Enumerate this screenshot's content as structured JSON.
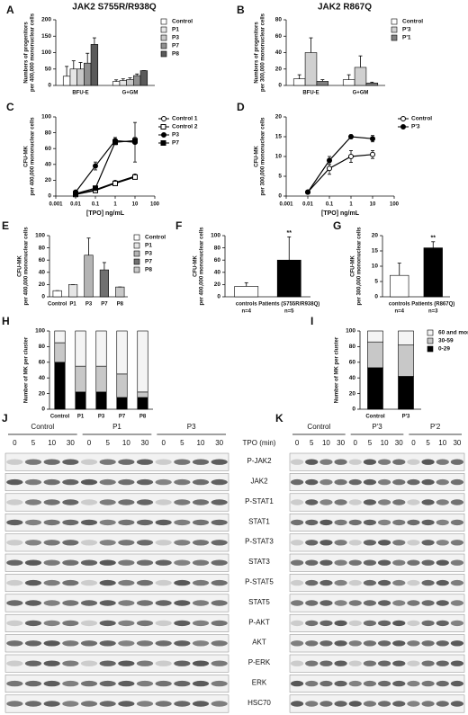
{
  "chart_data": [
    {
      "type": "bar",
      "panel": "A",
      "title": "JAK2 S755R/R938Q",
      "ylabel": [
        "Numbers of progenitors",
        "per 400,000 mononuclear cells"
      ],
      "categories": [
        "BFU-E",
        "G+GM"
      ],
      "series": [
        {
          "name": "Control",
          "color": "#ffffff",
          "values": [
            28,
            12
          ],
          "errors": [
            30,
            5
          ]
        },
        {
          "name": "P1",
          "color": "#e6e6e6",
          "values": [
            50,
            15
          ],
          "errors": [
            25,
            5
          ]
        },
        {
          "name": "P3",
          "color": "#c8c8c8",
          "values": [
            50,
            18
          ],
          "errors": [
            20,
            5
          ]
        },
        {
          "name": "P7",
          "color": "#909090",
          "values": [
            68,
            30
          ],
          "errors": [
            30,
            5
          ]
        },
        {
          "name": "P8",
          "color": "#5a5a5a",
          "values": [
            125,
            45
          ],
          "errors": [
            20,
            0
          ]
        }
      ],
      "ylim": [
        0,
        200
      ],
      "yticks": [
        0,
        50,
        100,
        150,
        200
      ],
      "legend": "right"
    },
    {
      "type": "bar",
      "panel": "B",
      "title": "JAK2 R867Q",
      "ylabel": [
        "Numbers of progenitors",
        "per 300,000 mononuclear cells"
      ],
      "categories": [
        "BFU-E",
        "G+GM"
      ],
      "series": [
        {
          "name": "Control",
          "color": "#ffffff",
          "values": [
            8,
            7
          ],
          "errors": [
            5,
            6
          ]
        },
        {
          "name": "P'3",
          "color": "#d0d0d0",
          "values": [
            40,
            22
          ],
          "errors": [
            18,
            14
          ]
        },
        {
          "name": "P'1",
          "color": "#808080",
          "values": [
            5,
            3
          ],
          "errors": [
            2,
            1
          ]
        }
      ],
      "ylim": [
        0,
        80
      ],
      "yticks": [
        0,
        20,
        40,
        60,
        80
      ],
      "legend": "right"
    },
    {
      "type": "line",
      "panel": "C",
      "ylabel": [
        "CFU-MK",
        "per 400,000 mononuclear cells"
      ],
      "xlabel": "[TPO] ng/mL",
      "log_x": true,
      "x": [
        0.01,
        0.1,
        1,
        10
      ],
      "series": [
        {
          "name": "Control 1",
          "color": "#000000",
          "marker": "circle",
          "marker_fill": "#ffffff",
          "values": [
            2,
            8,
            17,
            25
          ],
          "errors": [
            0,
            0,
            1,
            2
          ]
        },
        {
          "name": "Control 2",
          "color": "#000000",
          "marker": "square",
          "marker_fill": "#ffffff",
          "values": [
            2,
            7,
            16,
            24
          ],
          "errors": [
            0,
            1,
            1,
            1
          ]
        },
        {
          "name": "P3",
          "color": "#000000",
          "marker": "circle",
          "marker_fill": "#000000",
          "values": [
            5,
            38,
            70,
            68
          ],
          "errors": [
            1,
            5,
            4,
            25
          ]
        },
        {
          "name": "P7",
          "color": "#000000",
          "marker": "square",
          "marker_fill": "#000000",
          "values": [
            3,
            10,
            68,
            70
          ],
          "errors": [
            1,
            2,
            3,
            4
          ]
        }
      ],
      "xlim": [
        0.001,
        100
      ],
      "xticks": [
        0.001,
        0.01,
        0.1,
        1,
        10,
        100
      ],
      "ylim": [
        0,
        100
      ],
      "yticks": [
        0,
        20,
        40,
        60,
        80,
        100
      ],
      "legend": "right"
    },
    {
      "type": "line",
      "panel": "D",
      "ylabel": [
        "CFU-MK",
        "per 300,000 mononuclear cells"
      ],
      "xlabel": "[TPO] ng/mL",
      "log_x": true,
      "x": [
        0.01,
        0.1,
        1,
        10
      ],
      "series": [
        {
          "name": "Control",
          "color": "#000000",
          "marker": "circle",
          "marker_fill": "#ffffff",
          "values": [
            1,
            7,
            10,
            10.5
          ],
          "errors": [
            0,
            1.5,
            1.5,
            1
          ]
        },
        {
          "name": "P'3",
          "color": "#000000",
          "marker": "circle",
          "marker_fill": "#000000",
          "values": [
            1,
            9,
            15,
            14.5
          ],
          "errors": [
            0,
            1,
            0.5,
            0.8
          ]
        }
      ],
      "xlim": [
        0.001,
        100
      ],
      "xticks": [
        0.001,
        0.01,
        0.1,
        1,
        10,
        100
      ],
      "ylim": [
        0,
        20
      ],
      "yticks": [
        0,
        5,
        10,
        15,
        20
      ],
      "legend": "right"
    },
    {
      "type": "bar",
      "panel": "E",
      "ylabel": [
        "CFU-MK",
        "per 400,000 mononuclear cells"
      ],
      "categories": [
        "Control",
        "P1",
        "P3",
        "P7",
        "P8"
      ],
      "values": [
        10,
        20,
        68,
        44,
        16
      ],
      "errors": [
        0,
        0,
        28,
        12,
        0
      ],
      "colors": [
        "#ffffff",
        "#e6e6e6",
        "#b4b4b4",
        "#707070",
        "#c8c8c8"
      ],
      "ylim": [
        0,
        100
      ],
      "yticks": [
        0,
        20,
        40,
        60,
        80,
        100
      ],
      "legend": "right"
    },
    {
      "type": "bar",
      "panel": "F",
      "ylabel": [
        "CFU-MK",
        "per 400,000 mononuclear cells"
      ],
      "categories": [
        "controls",
        "Patients (S755R/R938Q)"
      ],
      "counts": [
        "n=4",
        "n=5"
      ],
      "values": [
        17,
        60
      ],
      "errors": [
        6,
        38
      ],
      "colors": [
        "#ffffff",
        "#000000"
      ],
      "annotation": "**",
      "ylim": [
        0,
        100
      ],
      "yticks": [
        0,
        20,
        40,
        60,
        80,
        100
      ]
    },
    {
      "type": "bar",
      "panel": "G",
      "ylabel": [
        "CFU-MK",
        "per 300,000 mononuclear cells"
      ],
      "categories": [
        "controls",
        "Patients (R867Q)"
      ],
      "counts": [
        "n=4",
        "n=3"
      ],
      "values": [
        7,
        16
      ],
      "errors": [
        4,
        2
      ],
      "colors": [
        "#ffffff",
        "#000000"
      ],
      "annotation": "**",
      "ylim": [
        0,
        20
      ],
      "yticks": [
        0,
        5,
        10,
        15,
        20
      ]
    },
    {
      "type": "stacked_bar",
      "panel": "H",
      "ylabel": [
        "Number of MK per cluster"
      ],
      "categories": [
        "Control",
        "P1",
        "P3",
        "P7",
        "P8"
      ],
      "series": [
        {
          "name": "0-29",
          "color": "#000000",
          "values": [
            60,
            22,
            22,
            15,
            15
          ]
        },
        {
          "name": "30-59",
          "color": "#c8c8c8",
          "values": [
            25,
            33,
            33,
            30,
            7
          ]
        },
        {
          "name": "60 and more",
          "color": "#f4f4f4",
          "values": [
            15,
            45,
            45,
            55,
            78
          ]
        }
      ],
      "ylim": [
        0,
        100
      ],
      "yticks": [
        0,
        20,
        40,
        60,
        80,
        100
      ]
    },
    {
      "type": "stacked_bar",
      "panel": "I",
      "ylabel": [
        "Number of MK per cluster"
      ],
      "categories": [
        "Control",
        "P'3"
      ],
      "series": [
        {
          "name": "0-29",
          "color": "#000000",
          "values": [
            53,
            42
          ]
        },
        {
          "name": "30-59",
          "color": "#c8c8c8",
          "values": [
            33,
            40
          ]
        },
        {
          "name": "60 and more",
          "color": "#f4f4f4",
          "values": [
            14,
            18
          ]
        }
      ],
      "ylim": [
        0,
        100
      ],
      "yticks": [
        0,
        20,
        40,
        60,
        80,
        100
      ],
      "legend": "right"
    }
  ],
  "blots": {
    "tpo_label": "TPO (min)",
    "rows": [
      "P-JAK2",
      "JAK2",
      "P-STAT1",
      "STAT1",
      "P-STAT3",
      "STAT3",
      "P-STAT5",
      "STAT5",
      "P-AKT",
      "AKT",
      "P-ERK",
      "ERK",
      "HSC70"
    ],
    "panels": [
      {
        "panel": "J",
        "groups": [
          "Control",
          "P1",
          "P3"
        ],
        "times": [
          0,
          5,
          10,
          30,
          0,
          5,
          10,
          30,
          0,
          5,
          10,
          30
        ]
      },
      {
        "panel": "K",
        "groups": [
          "Control",
          "P'3",
          "P'2"
        ],
        "times": [
          0,
          5,
          10,
          30,
          0,
          5,
          10,
          30,
          0,
          5,
          10,
          30
        ]
      }
    ]
  }
}
